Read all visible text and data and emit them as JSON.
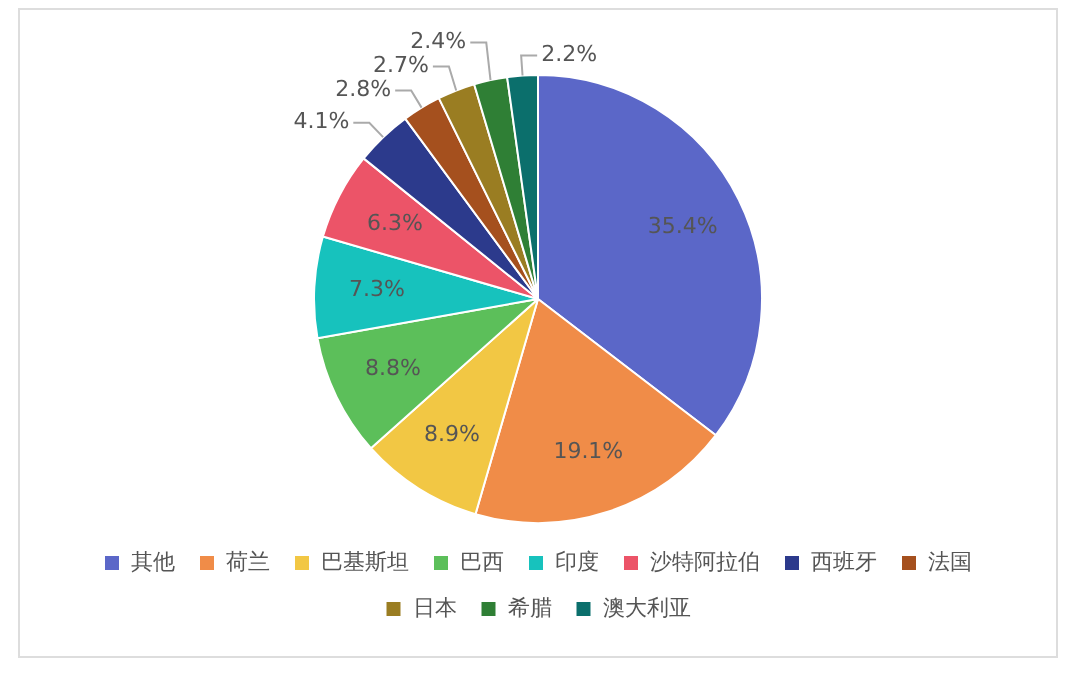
{
  "chart_data": {
    "type": "pie",
    "categories": [
      "其他",
      "荷兰",
      "巴基斯坦",
      "巴西",
      "印度",
      "沙特阿拉伯",
      "西班牙",
      "法国",
      "日本",
      "希腊",
      "澳大利亚"
    ],
    "values": [
      35.4,
      19.1,
      8.9,
      8.8,
      7.3,
      6.3,
      4.1,
      2.8,
      2.7,
      2.4,
      2.2
    ],
    "value_labels": [
      "35.4%",
      "19.1%",
      "8.9%",
      "8.8%",
      "7.3%",
      "6.3%",
      "4.1%",
      "2.8%",
      "2.7%",
      "2.4%",
      "2.2%"
    ],
    "colors": [
      "#5b67c8",
      "#f08c48",
      "#f2c744",
      "#5cbf5a",
      "#17c2bd",
      "#ec5468",
      "#2c3a8c",
      "#a5501e",
      "#9a7d22",
      "#2f7f35",
      "#0b6f6c"
    ],
    "legend": "bottom"
  }
}
